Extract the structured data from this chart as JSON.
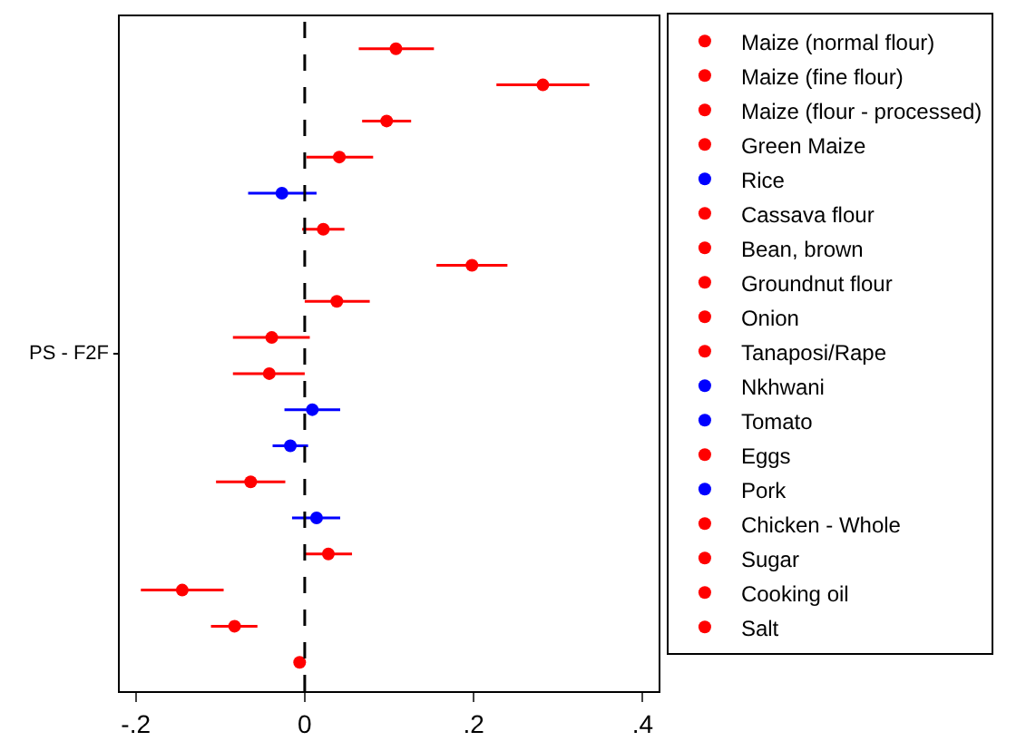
{
  "chart_data": {
    "type": "scatter",
    "orientation": "horizontal",
    "ylabel": "PS - F2F",
    "categories": [
      null,
      null,
      null,
      null,
      null,
      null,
      null,
      null,
      null,
      null,
      null,
      null,
      null,
      null,
      null,
      null,
      null,
      null
    ],
    "marker": "circle",
    "legend": "right",
    "xlim": [
      -0.219,
      0.419
    ],
    "xticks": [
      {
        "value": -0.2,
        "label": "-.2"
      },
      {
        "value": 0,
        "label": "0"
      },
      {
        "value": 0.2,
        "label": ".2"
      },
      {
        "value": 0.4,
        "label": ".4"
      }
    ],
    "ref_lines": [
      {
        "axis": "x",
        "value": 0,
        "color": "#000000",
        "line_style": "dashed"
      }
    ],
    "series": [
      {
        "name": "Maize (normal flour)",
        "color": "#ff0000",
        "values": [
          0.108,
          null,
          null,
          null,
          null,
          null,
          null,
          null,
          null,
          null,
          null,
          null,
          null,
          null,
          null,
          null,
          null,
          null
        ],
        "errors": [
          [
            0.064,
            0.153
          ],
          null,
          null,
          null,
          null,
          null,
          null,
          null,
          null,
          null,
          null,
          null,
          null,
          null,
          null,
          null,
          null,
          null
        ]
      },
      {
        "name": "Maize (fine flour)",
        "color": "#ff0000",
        "values": [
          null,
          0.282,
          null,
          null,
          null,
          null,
          null,
          null,
          null,
          null,
          null,
          null,
          null,
          null,
          null,
          null,
          null,
          null
        ],
        "errors": [
          null,
          [
            0.227,
            0.337
          ],
          null,
          null,
          null,
          null,
          null,
          null,
          null,
          null,
          null,
          null,
          null,
          null,
          null,
          null,
          null,
          null
        ]
      },
      {
        "name": "Maize (flour - processed)",
        "color": "#ff0000",
        "values": [
          null,
          null,
          0.097,
          null,
          null,
          null,
          null,
          null,
          null,
          null,
          null,
          null,
          null,
          null,
          null,
          null,
          null,
          null
        ],
        "errors": [
          null,
          null,
          [
            0.068,
            0.126
          ],
          null,
          null,
          null,
          null,
          null,
          null,
          null,
          null,
          null,
          null,
          null,
          null,
          null,
          null,
          null
        ]
      },
      {
        "name": "Green Maize",
        "color": "#ff0000",
        "values": [
          null,
          null,
          null,
          0.041,
          null,
          null,
          null,
          null,
          null,
          null,
          null,
          null,
          null,
          null,
          null,
          null,
          null,
          null
        ],
        "errors": [
          null,
          null,
          null,
          [
            0.002,
            0.081
          ],
          null,
          null,
          null,
          null,
          null,
          null,
          null,
          null,
          null,
          null,
          null,
          null,
          null,
          null
        ]
      },
      {
        "name": "Rice",
        "color": "#0000ff",
        "values": [
          null,
          null,
          null,
          null,
          -0.027,
          null,
          null,
          null,
          null,
          null,
          null,
          null,
          null,
          null,
          null,
          null,
          null,
          null
        ],
        "errors": [
          null,
          null,
          null,
          null,
          [
            -0.067,
            0.014
          ],
          null,
          null,
          null,
          null,
          null,
          null,
          null,
          null,
          null,
          null,
          null,
          null,
          null
        ]
      },
      {
        "name": "Cassava flour",
        "color": "#ff0000",
        "values": [
          null,
          null,
          null,
          null,
          null,
          0.022,
          null,
          null,
          null,
          null,
          null,
          null,
          null,
          null,
          null,
          null,
          null,
          null
        ],
        "errors": [
          null,
          null,
          null,
          null,
          null,
          [
            -0.003,
            0.047
          ],
          null,
          null,
          null,
          null,
          null,
          null,
          null,
          null,
          null,
          null,
          null,
          null
        ]
      },
      {
        "name": "Bean, brown",
        "color": "#ff0000",
        "values": [
          null,
          null,
          null,
          null,
          null,
          null,
          0.198,
          null,
          null,
          null,
          null,
          null,
          null,
          null,
          null,
          null,
          null,
          null
        ],
        "errors": [
          null,
          null,
          null,
          null,
          null,
          null,
          [
            0.156,
            0.24
          ],
          null,
          null,
          null,
          null,
          null,
          null,
          null,
          null,
          null,
          null,
          null
        ]
      },
      {
        "name": "Groundnut flour",
        "color": "#ff0000",
        "values": [
          null,
          null,
          null,
          null,
          null,
          null,
          null,
          0.038,
          null,
          null,
          null,
          null,
          null,
          null,
          null,
          null,
          null,
          null
        ],
        "errors": [
          null,
          null,
          null,
          null,
          null,
          null,
          null,
          [
            0.0,
            0.077
          ],
          null,
          null,
          null,
          null,
          null,
          null,
          null,
          null,
          null,
          null
        ]
      },
      {
        "name": "Onion",
        "color": "#ff0000",
        "values": [
          null,
          null,
          null,
          null,
          null,
          null,
          null,
          null,
          -0.039,
          null,
          null,
          null,
          null,
          null,
          null,
          null,
          null,
          null
        ],
        "errors": [
          null,
          null,
          null,
          null,
          null,
          null,
          null,
          null,
          [
            -0.085,
            0.006
          ],
          null,
          null,
          null,
          null,
          null,
          null,
          null,
          null,
          null
        ]
      },
      {
        "name": "Tanaposi/Rape",
        "color": "#ff0000",
        "values": [
          null,
          null,
          null,
          null,
          null,
          null,
          null,
          null,
          null,
          -0.042,
          null,
          null,
          null,
          null,
          null,
          null,
          null,
          null
        ],
        "errors": [
          null,
          null,
          null,
          null,
          null,
          null,
          null,
          null,
          null,
          [
            -0.085,
            0.0
          ],
          null,
          null,
          null,
          null,
          null,
          null,
          null,
          null
        ]
      },
      {
        "name": "Nkhwani",
        "color": "#0000ff",
        "values": [
          null,
          null,
          null,
          null,
          null,
          null,
          null,
          null,
          null,
          null,
          0.009,
          null,
          null,
          null,
          null,
          null,
          null,
          null
        ],
        "errors": [
          null,
          null,
          null,
          null,
          null,
          null,
          null,
          null,
          null,
          null,
          [
            -0.024,
            0.042
          ],
          null,
          null,
          null,
          null,
          null,
          null,
          null
        ]
      },
      {
        "name": "Tomato",
        "color": "#0000ff",
        "values": [
          null,
          null,
          null,
          null,
          null,
          null,
          null,
          null,
          null,
          null,
          null,
          -0.017,
          null,
          null,
          null,
          null,
          null,
          null
        ],
        "errors": [
          null,
          null,
          null,
          null,
          null,
          null,
          null,
          null,
          null,
          null,
          null,
          [
            -0.038,
            0.004
          ],
          null,
          null,
          null,
          null,
          null,
          null
        ]
      },
      {
        "name": "Eggs",
        "color": "#ff0000",
        "values": [
          null,
          null,
          null,
          null,
          null,
          null,
          null,
          null,
          null,
          null,
          null,
          null,
          -0.064,
          null,
          null,
          null,
          null,
          null
        ],
        "errors": [
          null,
          null,
          null,
          null,
          null,
          null,
          null,
          null,
          null,
          null,
          null,
          null,
          [
            -0.105,
            -0.023
          ],
          null,
          null,
          null,
          null,
          null
        ]
      },
      {
        "name": "Pork",
        "color": "#0000ff",
        "values": [
          null,
          null,
          null,
          null,
          null,
          null,
          null,
          null,
          null,
          null,
          null,
          null,
          null,
          0.014,
          null,
          null,
          null,
          null
        ],
        "errors": [
          null,
          null,
          null,
          null,
          null,
          null,
          null,
          null,
          null,
          null,
          null,
          null,
          null,
          [
            -0.015,
            0.042
          ],
          null,
          null,
          null,
          null
        ]
      },
      {
        "name": "Chicken - Whole",
        "color": "#ff0000",
        "values": [
          null,
          null,
          null,
          null,
          null,
          null,
          null,
          null,
          null,
          null,
          null,
          null,
          null,
          null,
          0.028,
          null,
          null,
          null
        ],
        "errors": [
          null,
          null,
          null,
          null,
          null,
          null,
          null,
          null,
          null,
          null,
          null,
          null,
          null,
          null,
          [
            -0.001,
            0.056
          ],
          null,
          null,
          null
        ]
      },
      {
        "name": "Sugar",
        "color": "#ff0000",
        "values": [
          null,
          null,
          null,
          null,
          null,
          null,
          null,
          null,
          null,
          null,
          null,
          null,
          null,
          null,
          null,
          -0.145,
          null,
          null
        ],
        "errors": [
          null,
          null,
          null,
          null,
          null,
          null,
          null,
          null,
          null,
          null,
          null,
          null,
          null,
          null,
          null,
          [
            -0.194,
            -0.096
          ],
          null,
          null
        ]
      },
      {
        "name": "Cooking oil",
        "color": "#ff0000",
        "values": [
          null,
          null,
          null,
          null,
          null,
          null,
          null,
          null,
          null,
          null,
          null,
          null,
          null,
          null,
          null,
          null,
          -0.083,
          null
        ],
        "errors": [
          null,
          null,
          null,
          null,
          null,
          null,
          null,
          null,
          null,
          null,
          null,
          null,
          null,
          null,
          null,
          null,
          [
            -0.111,
            -0.056
          ],
          null
        ]
      },
      {
        "name": "Salt",
        "color": "#ff0000",
        "values": [
          null,
          null,
          null,
          null,
          null,
          null,
          null,
          null,
          null,
          null,
          null,
          null,
          null,
          null,
          null,
          null,
          null,
          -0.006
        ]
      }
    ]
  }
}
